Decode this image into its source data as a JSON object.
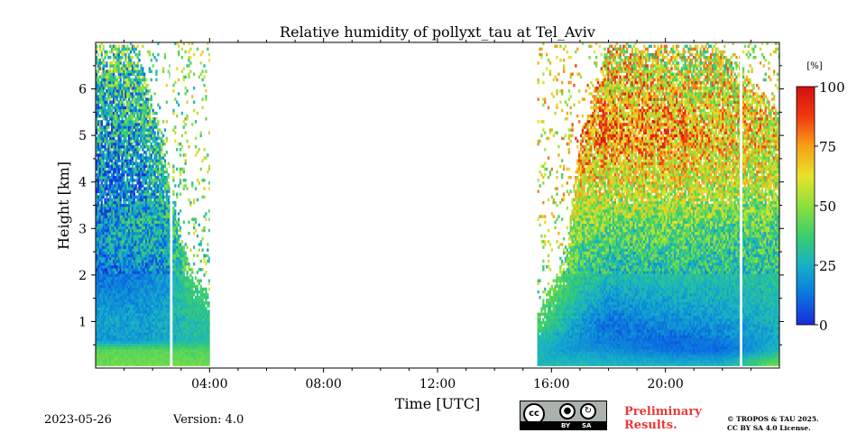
{
  "chart_data": {
    "type": "heatmap",
    "title": "Relative humidity of pollyxt_tau at Tel_Aviv",
    "xlabel": "Time [UTC]",
    "ylabel": "Height [km]",
    "xlim": [
      0,
      24
    ],
    "ylim": [
      0,
      7
    ],
    "x_ticks": [
      {
        "value": 4,
        "label": "04:00"
      },
      {
        "value": 8,
        "label": "08:00"
      },
      {
        "value": 12,
        "label": "12:00"
      },
      {
        "value": 16,
        "label": "16:00"
      },
      {
        "value": 20,
        "label": "20:00"
      }
    ],
    "y_ticks": [
      {
        "value": 1,
        "label": "1"
      },
      {
        "value": 2,
        "label": "2"
      },
      {
        "value": 3,
        "label": "3"
      },
      {
        "value": 4,
        "label": "4"
      },
      {
        "value": 5,
        "label": "5"
      },
      {
        "value": 6,
        "label": "6"
      }
    ],
    "colorbar": {
      "unit_label": "[%]",
      "range": [
        0,
        100
      ],
      "ticks": [
        {
          "value": 0,
          "label": "0"
        },
        {
          "value": 25,
          "label": "25"
        },
        {
          "value": 50,
          "label": "50"
        },
        {
          "value": 75,
          "label": "75"
        },
        {
          "value": 100,
          "label": "100"
        }
      ],
      "colors": [
        "#1a2ad8",
        "#0a76e0",
        "#17b0c8",
        "#3cce6c",
        "#8ee03c",
        "#e8e22a",
        "#f8a018",
        "#f03a10",
        "#d40f0f"
      ]
    },
    "data_segments": [
      {
        "start": 0.0,
        "end": 2.6,
        "description_units": "hours"
      },
      {
        "start": 2.7,
        "end": 4.0
      },
      {
        "start": 15.5,
        "end": 22.6
      },
      {
        "start": 22.7,
        "end": 24.0
      }
    ],
    "rh_profiles": [
      {
        "time": 0.0,
        "heights": [
          0.1,
          0.4,
          0.6,
          1.0,
          2.0,
          3.0,
          4.0,
          5.0,
          6.0,
          6.9
        ],
        "rh": [
          45,
          42,
          20,
          22,
          12,
          18,
          14,
          22,
          30,
          40
        ],
        "top_km": 6.9
      },
      {
        "time": 1.5,
        "heights": [
          0.1,
          0.4,
          0.6,
          1.0,
          2.0,
          3.0,
          4.0,
          5.0,
          6.0,
          6.9
        ],
        "rh": [
          45,
          42,
          20,
          22,
          14,
          30,
          15,
          25,
          32,
          40
        ],
        "top_km": 6.9
      },
      {
        "time": 2.5,
        "heights": [
          0.1,
          0.4,
          0.6,
          1.0,
          2.0,
          3.0,
          4.0,
          5.0,
          6.0,
          6.9
        ],
        "rh": [
          45,
          42,
          24,
          24,
          20,
          24,
          35,
          40,
          45,
          50
        ],
        "top_km": 4.5
      },
      {
        "time": 3.2,
        "heights": [
          0.1,
          0.4,
          0.6,
          1.0,
          2.0,
          3.0,
          4.0
        ],
        "rh": [
          45,
          40,
          28,
          30,
          38,
          45,
          50
        ],
        "top_km": 2.3
      },
      {
        "time": 4.0,
        "heights": [
          0.1,
          0.4,
          0.6,
          1.0,
          2.0,
          3.0,
          4.0
        ],
        "rh": [
          45,
          40,
          30,
          32,
          40,
          45,
          50
        ],
        "top_km": 1.6
      },
      {
        "time": 15.5,
        "heights": [
          0.1,
          0.4,
          0.6,
          1.0,
          2.0,
          3.0,
          4.0
        ],
        "rh": [
          28,
          28,
          30,
          40,
          55,
          60,
          60
        ],
        "top_km": 1.2
      },
      {
        "time": 16.5,
        "heights": [
          0.1,
          0.4,
          0.6,
          1.0,
          2.0,
          3.0,
          4.0,
          5.0
        ],
        "rh": [
          28,
          20,
          22,
          28,
          40,
          55,
          60,
          60
        ],
        "top_km": 2.4
      },
      {
        "time": 17.0,
        "heights": [
          0.1,
          0.4,
          0.6,
          1.0,
          2.0,
          3.0,
          4.0,
          5.0,
          6.0,
          6.9
        ],
        "rh": [
          28,
          20,
          18,
          22,
          35,
          48,
          65,
          75,
          70,
          65
        ],
        "top_km": 5.0
      },
      {
        "time": 18.0,
        "heights": [
          0.1,
          0.4,
          0.6,
          1.0,
          2.0,
          3.0,
          4.0,
          5.0,
          6.0,
          6.9
        ],
        "rh": [
          26,
          18,
          14,
          12,
          28,
          42,
          60,
          80,
          70,
          60
        ],
        "top_km": 6.9
      },
      {
        "time": 20.0,
        "heights": [
          0.1,
          0.4,
          0.6,
          1.0,
          2.0,
          3.0,
          4.0,
          5.0,
          6.0,
          6.9
        ],
        "rh": [
          25,
          12,
          10,
          18,
          30,
          44,
          62,
          78,
          65,
          55
        ],
        "top_km": 6.9
      },
      {
        "time": 22.0,
        "heights": [
          0.1,
          0.4,
          0.6,
          1.0,
          2.0,
          3.0,
          4.0,
          5.0,
          6.0,
          6.9
        ],
        "rh": [
          25,
          10,
          14,
          20,
          30,
          40,
          58,
          70,
          60,
          55
        ],
        "top_km": 6.9
      },
      {
        "time": 24.0,
        "heights": [
          0.1,
          0.4,
          0.6,
          1.0,
          2.0,
          3.0,
          4.0,
          5.0,
          6.0,
          6.9
        ],
        "rh": [
          45,
          28,
          24,
          26,
          32,
          40,
          55,
          65,
          60,
          55
        ],
        "top_km": 5.5
      }
    ]
  },
  "footer": {
    "date": "2023-05-26",
    "version": "Version: 4.0",
    "preliminary_line1": "Preliminary",
    "preliminary_line2": "Results.",
    "license_line1": "© TROPOS & TAU 2025.",
    "license_line2": "CC BY SA 4.0 License.",
    "cc_label": "cc",
    "by_label": "BY",
    "sa_label": "SA",
    "preliminary_color": "#e8393a"
  }
}
